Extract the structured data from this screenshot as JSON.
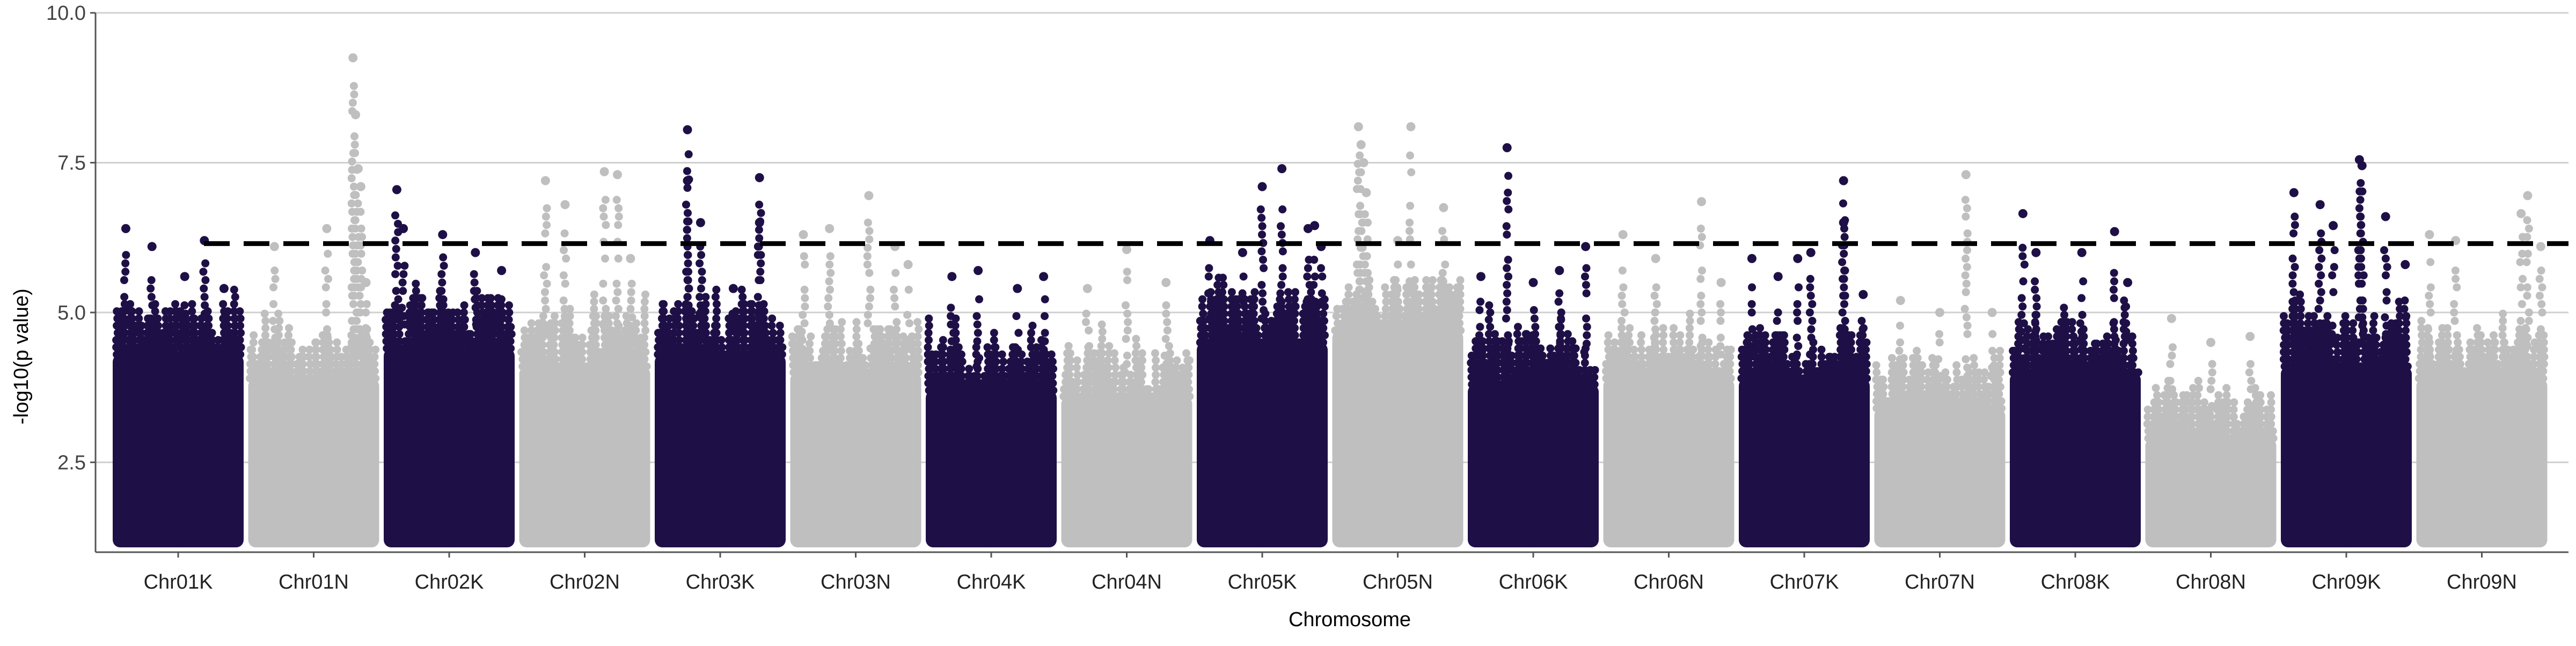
{
  "chart_data": {
    "type": "scatter",
    "subtype": "manhattan",
    "title": "",
    "xlabel": "Chromosome",
    "ylabel": "-log10(p value)",
    "ylim": [
      1.0,
      10.0
    ],
    "yticks": [
      "2.5",
      "5.0",
      "7.5",
      "10.0"
    ],
    "grid": true,
    "legend": "none",
    "threshold": 6.15,
    "colors": {
      "odd": "#1e1046",
      "even": "#bfbfbf",
      "threshold": "#000000",
      "grid": "#d0d0d0",
      "axis": "#555555"
    },
    "chromosomes": [
      {
        "name": "Chr01K",
        "base_top": 5.2,
        "peaks": [
          [
            0.1,
            6.4
          ],
          [
            0.3,
            6.1
          ],
          [
            0.55,
            5.6
          ],
          [
            0.7,
            6.2
          ],
          [
            0.85,
            5.4
          ]
        ]
      },
      {
        "name": "Chr01N",
        "base_top": 4.8,
        "peaks": [
          [
            0.2,
            6.1
          ],
          [
            0.6,
            6.4
          ],
          [
            0.8,
            9.25
          ],
          [
            0.82,
            8.3
          ],
          [
            0.84,
            7.4
          ],
          [
            0.86,
            7.1
          ],
          [
            0.9,
            5.5
          ]
        ]
      },
      {
        "name": "Chr02K",
        "base_top": 5.3,
        "peaks": [
          [
            0.1,
            7.05
          ],
          [
            0.15,
            6.4
          ],
          [
            0.45,
            6.3
          ],
          [
            0.7,
            6.0
          ],
          [
            0.9,
            5.7
          ]
        ]
      },
      {
        "name": "Chr02N",
        "base_top": 5.0,
        "peaks": [
          [
            0.2,
            7.2
          ],
          [
            0.35,
            6.8
          ],
          [
            0.65,
            7.35
          ],
          [
            0.75,
            7.3
          ],
          [
            0.85,
            5.9
          ]
        ]
      },
      {
        "name": "Chr03K",
        "base_top": 5.2,
        "peaks": [
          [
            0.25,
            8.05
          ],
          [
            0.25,
            7.2
          ],
          [
            0.35,
            6.5
          ],
          [
            0.8,
            7.25
          ],
          [
            0.8,
            6.5
          ],
          [
            0.6,
            5.4
          ]
        ]
      },
      {
        "name": "Chr03N",
        "base_top": 4.9,
        "peaks": [
          [
            0.1,
            6.3
          ],
          [
            0.3,
            6.4
          ],
          [
            0.6,
            6.95
          ],
          [
            0.8,
            6.1
          ],
          [
            0.9,
            5.8
          ]
        ]
      },
      {
        "name": "Chr04K",
        "base_top": 4.6,
        "peaks": [
          [
            0.2,
            5.6
          ],
          [
            0.4,
            5.7
          ],
          [
            0.7,
            5.4
          ],
          [
            0.9,
            5.6
          ]
        ]
      },
      {
        "name": "Chr04N",
        "base_top": 4.5,
        "peaks": [
          [
            0.2,
            5.4
          ],
          [
            0.5,
            6.05
          ],
          [
            0.8,
            5.5
          ]
        ]
      },
      {
        "name": "Chr05K",
        "base_top": 5.4,
        "peaks": [
          [
            0.1,
            6.2
          ],
          [
            0.35,
            6.0
          ],
          [
            0.5,
            7.1
          ],
          [
            0.65,
            7.4
          ],
          [
            0.85,
            6.4
          ],
          [
            0.9,
            6.45
          ],
          [
            0.95,
            6.1
          ]
        ]
      },
      {
        "name": "Chr05N",
        "base_top": 5.6,
        "peaks": [
          [
            0.2,
            8.1
          ],
          [
            0.22,
            7.8
          ],
          [
            0.24,
            7.5
          ],
          [
            0.26,
            7.0
          ],
          [
            0.6,
            8.1
          ],
          [
            0.85,
            6.75
          ],
          [
            0.5,
            6.2
          ]
        ]
      },
      {
        "name": "Chr06K",
        "base_top": 4.7,
        "peaks": [
          [
            0.1,
            5.6
          ],
          [
            0.3,
            7.75
          ],
          [
            0.5,
            5.5
          ],
          [
            0.7,
            5.7
          ],
          [
            0.9,
            6.1
          ]
        ]
      },
      {
        "name": "Chr06N",
        "base_top": 4.8,
        "peaks": [
          [
            0.15,
            6.3
          ],
          [
            0.4,
            5.9
          ],
          [
            0.75,
            6.85
          ],
          [
            0.9,
            5.5
          ]
        ]
      },
      {
        "name": "Chr07K",
        "base_top": 4.8,
        "peaks": [
          [
            0.1,
            5.9
          ],
          [
            0.3,
            5.6
          ],
          [
            0.45,
            5.9
          ],
          [
            0.55,
            6.0
          ],
          [
            0.8,
            7.2
          ],
          [
            0.8,
            6.5
          ],
          [
            0.95,
            5.3
          ]
        ]
      },
      {
        "name": "Chr07N",
        "base_top": 4.3,
        "peaks": [
          [
            0.2,
            5.2
          ],
          [
            0.5,
            5.0
          ],
          [
            0.7,
            7.3
          ],
          [
            0.9,
            5.0
          ]
        ]
      },
      {
        "name": "Chr08K",
        "base_top": 4.9,
        "peaks": [
          [
            0.1,
            6.65
          ],
          [
            0.2,
            6.0
          ],
          [
            0.55,
            6.0
          ],
          [
            0.8,
            6.35
          ],
          [
            0.9,
            5.5
          ]
        ]
      },
      {
        "name": "Chr08N",
        "base_top": 3.8,
        "peaks": [
          [
            0.2,
            4.9
          ],
          [
            0.5,
            4.5
          ],
          [
            0.8,
            4.6
          ]
        ]
      },
      {
        "name": "Chr09K",
        "base_top": 5.0,
        "peaks": [
          [
            0.1,
            7.0
          ],
          [
            0.3,
            6.8
          ],
          [
            0.4,
            6.45
          ],
          [
            0.6,
            7.55
          ],
          [
            0.62,
            7.45
          ],
          [
            0.8,
            6.6
          ],
          [
            0.95,
            5.8
          ]
        ]
      },
      {
        "name": "Chr09N",
        "base_top": 4.8,
        "peaks": [
          [
            0.1,
            6.3
          ],
          [
            0.3,
            6.2
          ],
          [
            0.8,
            6.65
          ],
          [
            0.85,
            6.95
          ],
          [
            0.95,
            6.1
          ]
        ]
      }
    ]
  }
}
